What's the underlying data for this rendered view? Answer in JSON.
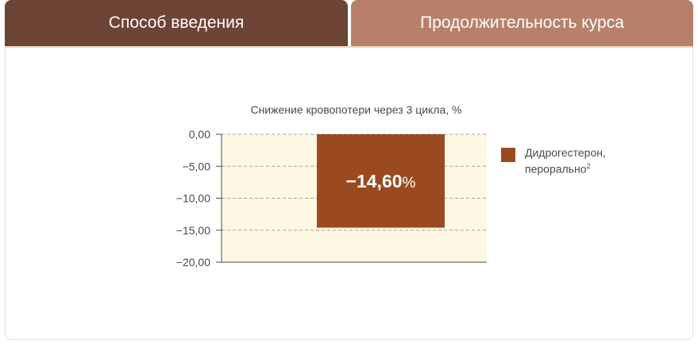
{
  "tabs": [
    {
      "label": "Способ введения"
    },
    {
      "label": "Продолжительность курса"
    }
  ],
  "colors": {
    "tab_active": "#6e4437",
    "tab_inactive": "#b8806a",
    "plot_background": "#fdf7e3",
    "bar": "#9a4a1e",
    "bar_label": "#ffffff"
  },
  "chart_data": {
    "type": "bar",
    "title": "Снижение кровопотери через 3 цикла, %",
    "xlabel": "",
    "ylabel": "",
    "ylim": [
      -20,
      0
    ],
    "yticks": [
      0,
      -5,
      -10,
      -15,
      -20
    ],
    "ytick_labels": [
      "0,00",
      "−5,00",
      "−10,00",
      "−15,00",
      "−20,00"
    ],
    "grid": "horizontal-dashed",
    "legend_position": "right",
    "series": [
      {
        "name": "Дидрогестерон, перорально",
        "name_line1": "Дидрогестерон,",
        "name_line2": "перорально",
        "footnote": "2",
        "values": [
          -14.6
        ],
        "data_label_number": "−14,60",
        "data_label_unit": "%"
      }
    ]
  }
}
